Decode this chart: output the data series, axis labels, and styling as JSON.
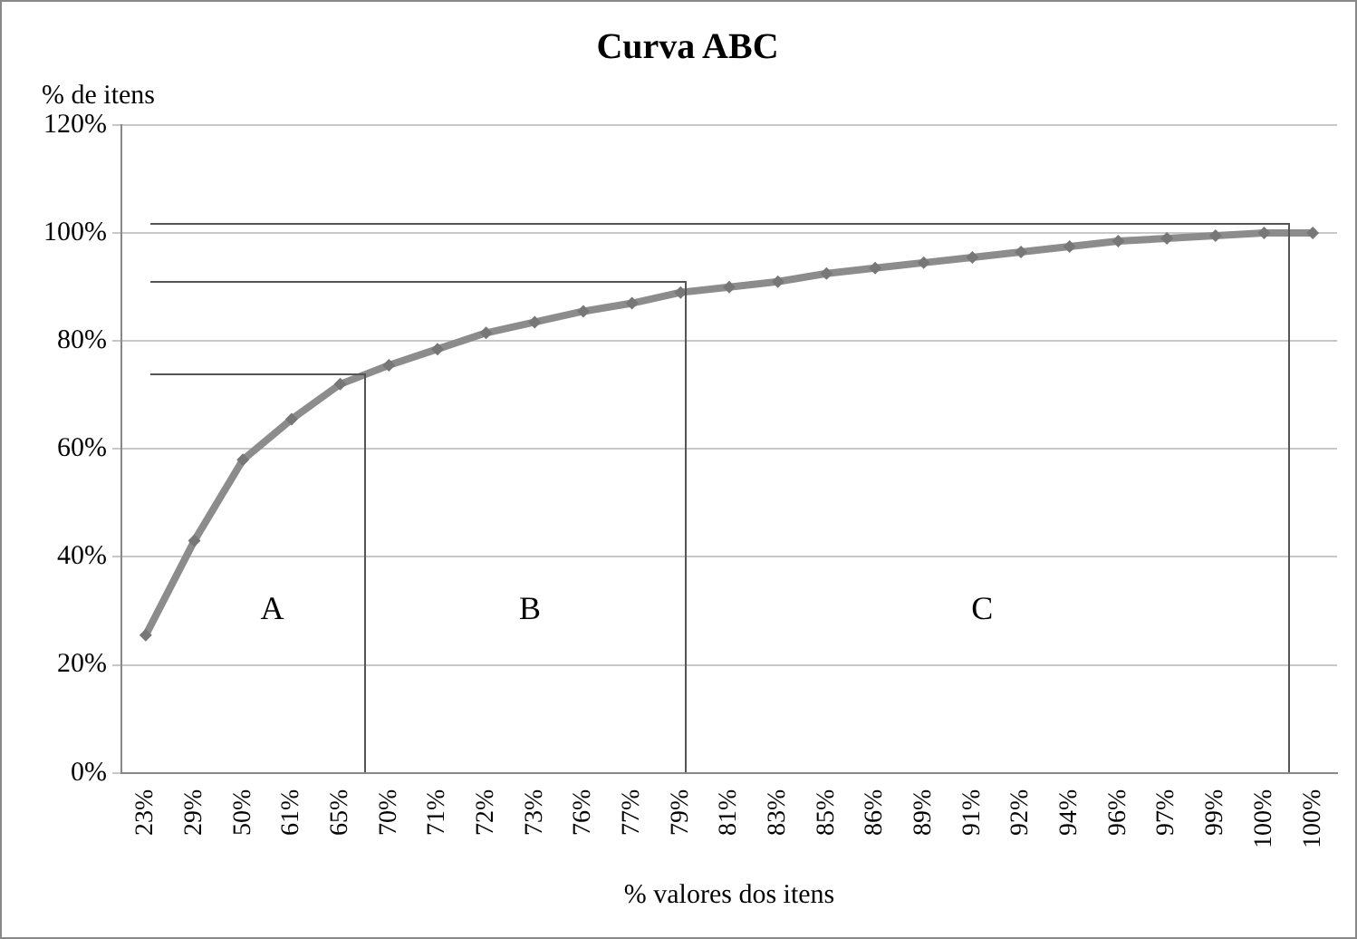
{
  "chart_data": {
    "type": "line",
    "title": "Curva ABC",
    "xlabel": "% valores dos itens",
    "ylabel": "% de itens",
    "categories": [
      "23%",
      "29%",
      "50%",
      "61%",
      "65%",
      "70%",
      "71%",
      "72%",
      "73%",
      "76%",
      "77%",
      "79%",
      "81%",
      "83%",
      "85%",
      "86%",
      "89%",
      "91%",
      "92%",
      "94%",
      "96%",
      "97%",
      "99%",
      "100%",
      "100%"
    ],
    "series": [
      {
        "color": "#8c8c8c",
        "values": [
          25.5,
          43,
          58,
          65.5,
          72,
          75.5,
          78.5,
          81.5,
          83.5,
          85.5,
          87,
          89,
          90,
          91,
          92.5,
          93.5,
          94.5,
          95.5,
          96.5,
          97.5,
          98.5,
          99,
          99.5,
          100,
          100
        ]
      }
    ],
    "ylim": [
      0,
      120
    ],
    "yticks": [
      {
        "value": 0,
        "label": "0%"
      },
      {
        "value": 20,
        "label": "20%"
      },
      {
        "value": 40,
        "label": "40%"
      },
      {
        "value": 60,
        "label": "60%"
      },
      {
        "value": 80,
        "label": "80%"
      },
      {
        "value": 100,
        "label": "100%"
      },
      {
        "value": 120,
        "label": "120%"
      }
    ],
    "annotations": [
      "A",
      "B",
      "C"
    ],
    "grid": "y",
    "legend": false,
    "marker": "diamond",
    "line_style": "solid"
  }
}
